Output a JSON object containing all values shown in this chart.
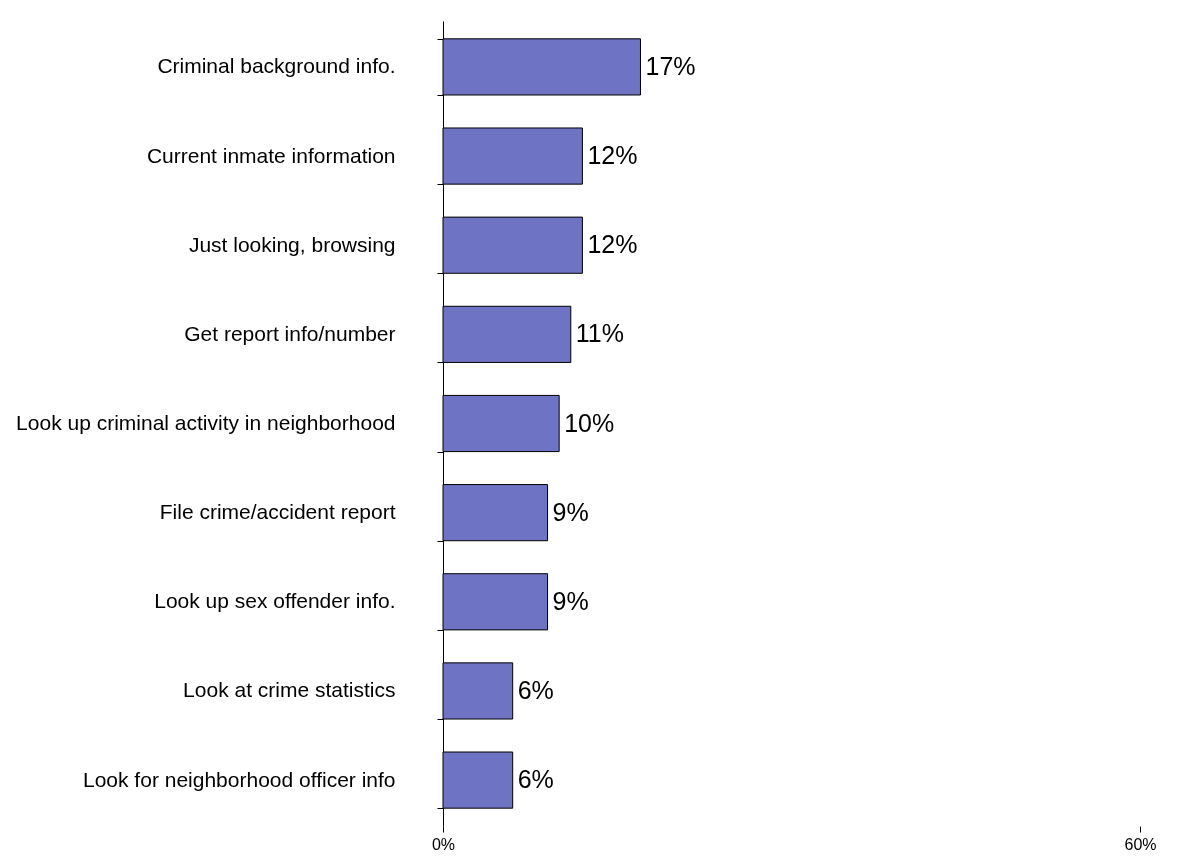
{
  "chart_data": {
    "type": "bar",
    "orientation": "horizontal",
    "categories": [
      "Criminal background info.",
      "Current inmate information",
      "Just looking, browsing",
      "Get report info/number",
      "Look up criminal activity in neighborhood",
      "File crime/accident report",
      "Look up sex offender info.",
      "Look at crime statistics",
      "Look for neighborhood officer info"
    ],
    "values": [
      17,
      12,
      12,
      11,
      10,
      9,
      9,
      6,
      6
    ],
    "value_labels": [
      "17%",
      "12%",
      "12%",
      "11%",
      "10%",
      "9%",
      "9%",
      "6%",
      "6%"
    ],
    "color": "#6f73c3",
    "xlim": [
      0,
      60
    ],
    "xticks": [
      {
        "value": 0,
        "label": "0%"
      },
      {
        "value": 60,
        "label": "60%"
      }
    ],
    "grid": false
  }
}
